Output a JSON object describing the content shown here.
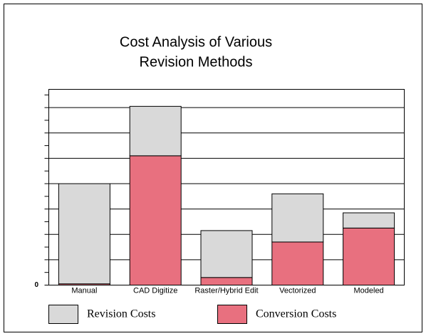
{
  "chart_data": {
    "type": "stacked_bar",
    "title": [
      "Cost Analysis of Various",
      "Revision Methods"
    ],
    "categories": [
      "Manual",
      "CAD Digitize",
      "Raster/Hybrid Edit",
      "Vectorized",
      "Modeled"
    ],
    "series": [
      {
        "name": "Revision Costs",
        "color": "#d9d9d9",
        "values": [
          3.95,
          1.95,
          1.85,
          1.9,
          0.6
        ]
      },
      {
        "name": "Conversion Costs",
        "color": "#e8707f",
        "values": [
          0.05,
          5.1,
          0.3,
          1.7,
          2.25
        ]
      }
    ],
    "stack_from_bottom": [
      "Conversion Costs",
      "Revision Costs"
    ],
    "ylim": [
      0,
      7.72
    ],
    "yticks": [
      0
    ],
    "grid_lines": [
      1,
      2,
      3,
      4,
      5,
      6,
      7
    ],
    "minor_ticks": [
      0.5,
      1.5,
      2.5,
      3.5,
      4.5,
      5.5,
      6.5,
      7.5
    ],
    "grid": true,
    "legend": "bottom"
  }
}
